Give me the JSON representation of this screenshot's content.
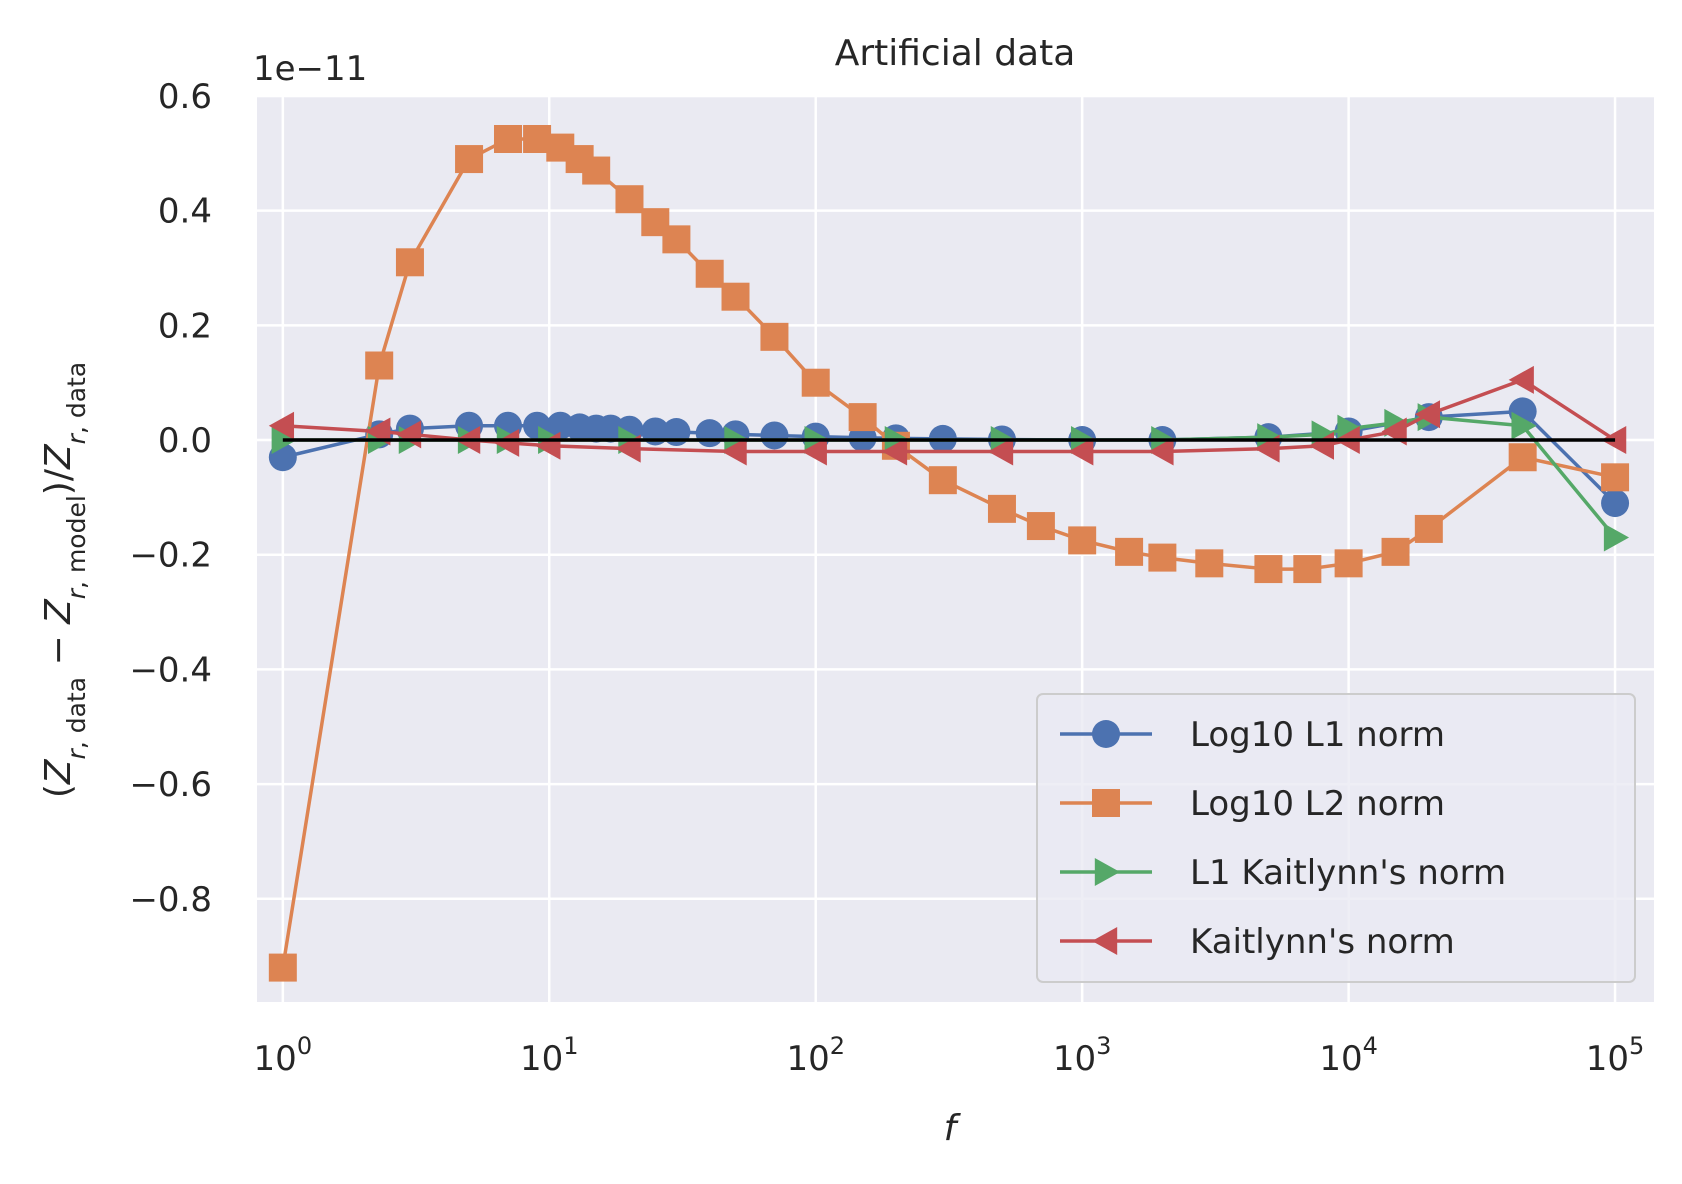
{
  "chart_data": {
    "type": "line",
    "title": "Artificial data",
    "xlabel": "f",
    "ylabel": "(Z_{r, data} − Z_{r, model})/Z_{r, data}",
    "y_multiplier": "1e−11",
    "x_scale": "log",
    "xlim": [
      0.8,
      140000
    ],
    "ylim": [
      -0.98,
      0.6
    ],
    "x_ticks": [
      {
        "base": "10",
        "exp": "0",
        "value": 1
      },
      {
        "base": "10",
        "exp": "1",
        "value": 10
      },
      {
        "base": "10",
        "exp": "2",
        "value": 100
      },
      {
        "base": "10",
        "exp": "3",
        "value": 1000
      },
      {
        "base": "10",
        "exp": "4",
        "value": 10000
      },
      {
        "base": "10",
        "exp": "5",
        "value": 100000
      }
    ],
    "y_ticks": [
      {
        "label": "0.6",
        "value": 0.6
      },
      {
        "label": "0.4",
        "value": 0.4
      },
      {
        "label": "0.2",
        "value": 0.2
      },
      {
        "label": "0.0",
        "value": 0.0
      },
      {
        "label": "−0.2",
        "value": -0.2
      },
      {
        "label": "−0.4",
        "value": -0.4
      },
      {
        "label": "−0.6",
        "value": -0.6
      },
      {
        "label": "−0.8",
        "value": -0.8
      }
    ],
    "grid": true,
    "legend_position": "lower-right",
    "reference_line": {
      "x": [
        1,
        100000
      ],
      "y": [
        0,
        0
      ],
      "color": "#000000"
    },
    "series": [
      {
        "name": "Log10 L1 norm",
        "color": "#4c72b0",
        "marker": "circle",
        "x": [
          1,
          2.3,
          3,
          5,
          7,
          9,
          11,
          13,
          15,
          17,
          20,
          25,
          30,
          40,
          50,
          70,
          100,
          150,
          200,
          300,
          500,
          1000,
          2000,
          5000,
          10000,
          20000,
          45000,
          100000
        ],
        "y": [
          -0.03,
          0.01,
          0.02,
          0.025,
          0.025,
          0.025,
          0.025,
          0.022,
          0.02,
          0.02,
          0.018,
          0.015,
          0.014,
          0.012,
          0.01,
          0.008,
          0.006,
          0.004,
          0.003,
          0.002,
          0.001,
          0.0,
          0.0,
          0.005,
          0.015,
          0.04,
          0.05,
          -0.11
        ]
      },
      {
        "name": "Log10 L2 norm",
        "color": "#dd8452",
        "marker": "square",
        "x": [
          1,
          2.3,
          3,
          5,
          7,
          9,
          11,
          13,
          15,
          20,
          25,
          30,
          40,
          50,
          70,
          100,
          150,
          200,
          300,
          500,
          700,
          1000,
          1500,
          2000,
          3000,
          5000,
          7000,
          10000,
          15000,
          20000,
          45000,
          100000
        ],
        "y": [
          -0.92,
          0.13,
          0.31,
          0.49,
          0.525,
          0.525,
          0.51,
          0.49,
          0.47,
          0.42,
          0.38,
          0.35,
          0.29,
          0.25,
          0.18,
          0.1,
          0.04,
          -0.01,
          -0.07,
          -0.12,
          -0.15,
          -0.175,
          -0.195,
          -0.205,
          -0.215,
          -0.225,
          -0.225,
          -0.215,
          -0.195,
          -0.155,
          -0.03,
          -0.065
        ]
      },
      {
        "name": "L1 Kaitlynn's norm",
        "color": "#55a868",
        "marker": "triangle-right",
        "x": [
          1,
          2.3,
          3,
          5,
          7,
          10,
          20,
          50,
          100,
          200,
          500,
          1000,
          2000,
          5000,
          8000,
          10000,
          15000,
          20000,
          45000,
          100000
        ],
        "y": [
          0.0,
          0.0,
          0.0,
          0.0,
          0.0,
          0.0,
          0.0,
          0.0,
          0.0,
          0.0,
          0.0,
          0.0,
          0.0,
          0.005,
          0.01,
          0.02,
          0.03,
          0.04,
          0.025,
          -0.17
        ]
      },
      {
        "name": "Kaitlynn's norm",
        "color": "#c44e52",
        "marker": "triangle-left",
        "x": [
          1,
          2.3,
          3,
          5,
          7,
          10,
          20,
          50,
          100,
          200,
          500,
          1000,
          2000,
          5000,
          8000,
          10000,
          15000,
          20000,
          45000,
          100000
        ],
        "y": [
          0.025,
          0.015,
          0.01,
          0.0,
          -0.005,
          -0.01,
          -0.015,
          -0.02,
          -0.02,
          -0.02,
          -0.02,
          -0.02,
          -0.02,
          -0.015,
          -0.01,
          0.0,
          0.015,
          0.045,
          0.105,
          0.0
        ]
      }
    ]
  }
}
